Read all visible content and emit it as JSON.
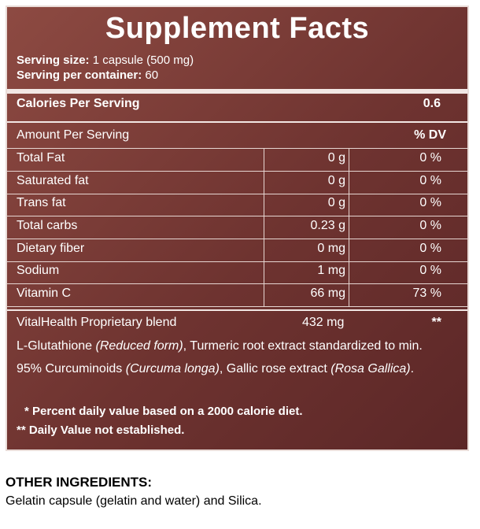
{
  "title": "Supplement Facts",
  "serving": {
    "size_label": "Serving size:",
    "size_value": "1 capsule (500 mg)",
    "per_container_label": "Serving per container:",
    "per_container_value": "60"
  },
  "calories": {
    "label": "Calories Per Serving",
    "value": "0.6"
  },
  "header": {
    "label": "Amount Per Serving",
    "dv": "% DV"
  },
  "rows": [
    {
      "name": "Total Fat",
      "amount": "0 g",
      "dv": "0 %"
    },
    {
      "name": "Saturated fat",
      "amount": "0 g",
      "dv": "0 %"
    },
    {
      "name": "Trans fat",
      "amount": "0 g",
      "dv": "0 %"
    },
    {
      "name": "Total carbs",
      "amount": "0.23 g",
      "dv": "0 %"
    },
    {
      "name": "Dietary fiber",
      "amount": "0 mg",
      "dv": "0 %"
    },
    {
      "name": "Sodium",
      "amount": "1 mg",
      "dv": "0 %"
    },
    {
      "name": "Vitamin C",
      "amount": "66 mg",
      "dv": "73 %"
    }
  ],
  "blend": {
    "name": "VitalHealth Proprietary blend",
    "amount": "432 mg",
    "dv": "**",
    "line1_a": "L-Glutathione ",
    "line1_b": "(Reduced form)",
    "line1_c": ", Turmeric root extract standardized to min.",
    "line2_a": "95% Curcuminoids ",
    "line2_b": "(Curcuma longa)",
    "line2_c": ", Gallic rose extract ",
    "line2_d": "(Rosa Gallica)",
    "line2_e": "."
  },
  "notes": {
    "percent_mark": "*",
    "percent_text": "Percent daily value based on a 2000 calorie diet.",
    "dv_mark": "**",
    "dv_text": "Daily Value not established."
  },
  "other": {
    "title": "OTHER INGREDIENTS:",
    "text": "Gelatin capsule (gelatin and water) and Silica."
  }
}
